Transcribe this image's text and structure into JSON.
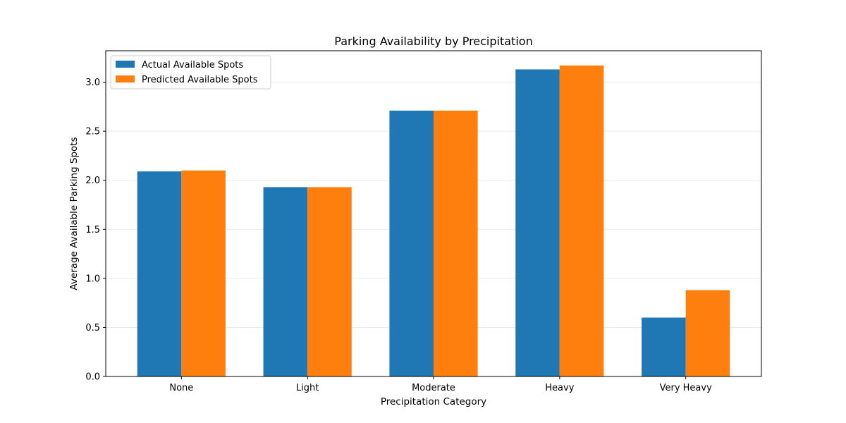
{
  "chart_data": {
    "type": "bar",
    "title": "Parking Availability by Precipitation",
    "xlabel": "Precipitation Category",
    "ylabel": "Average Available Parking Spots",
    "categories": [
      "None",
      "Light",
      "Moderate",
      "Heavy",
      "Very Heavy"
    ],
    "series": [
      {
        "name": "Actual Available Spots",
        "color": "#1f77b4",
        "values": [
          2.09,
          1.93,
          2.71,
          3.13,
          0.6
        ]
      },
      {
        "name": "Predicted Available Spots",
        "color": "#ff7f0e",
        "values": [
          2.1,
          1.93,
          2.71,
          3.17,
          0.88
        ]
      }
    ],
    "ylim": [
      0,
      3.32
    ],
    "yticks": [
      "0.0",
      "0.5",
      "1.0",
      "1.5",
      "2.0",
      "2.5",
      "3.0"
    ],
    "grid": "y",
    "legend": "top-left"
  }
}
